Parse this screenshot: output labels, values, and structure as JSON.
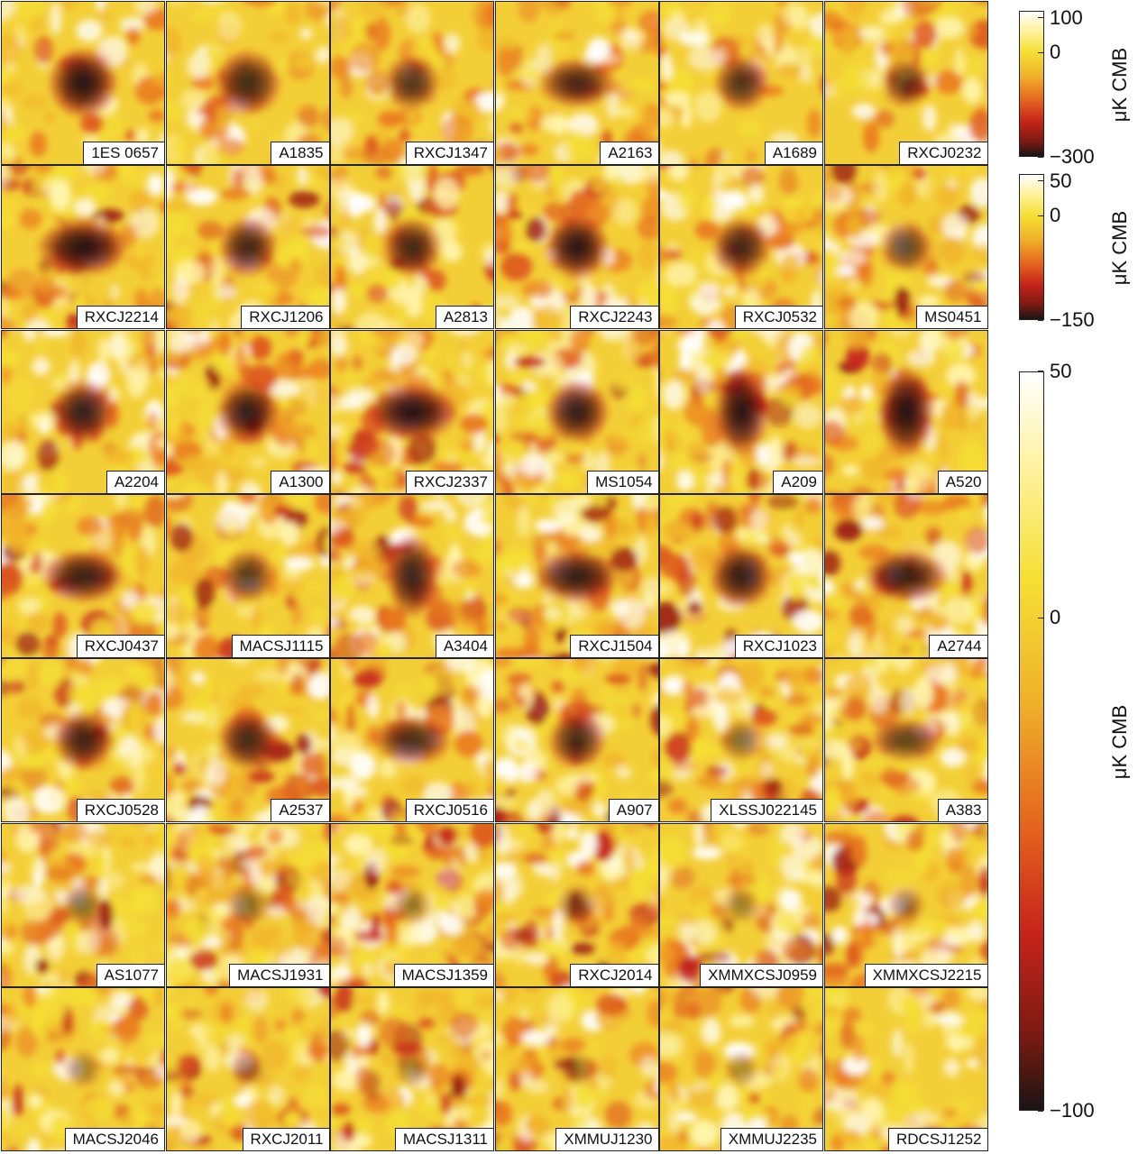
{
  "panels": [
    {
      "name": "1ES 0657",
      "signal": 1.0,
      "shape": "round",
      "noise": 0.25
    },
    {
      "name": "A1835",
      "signal": 0.75,
      "shape": "star",
      "noise": 0.35
    },
    {
      "name": "RXCJ1347",
      "signal": 0.65,
      "shape": "round",
      "noise": 0.35
    },
    {
      "name": "A2163",
      "signal": 0.7,
      "shape": "wide",
      "noise": 0.45
    },
    {
      "name": "A1689",
      "signal": 0.65,
      "shape": "round",
      "noise": 0.35
    },
    {
      "name": "RXCJ0232",
      "signal": 0.5,
      "shape": "round",
      "noise": 0.4
    },
    {
      "name": "RXCJ2214",
      "signal": 0.95,
      "shape": "wide",
      "noise": 0.7
    },
    {
      "name": "RXCJ1206",
      "signal": 0.75,
      "shape": "round",
      "noise": 0.6
    },
    {
      "name": "A2813",
      "signal": 0.75,
      "shape": "round",
      "noise": 0.6
    },
    {
      "name": "RXCJ2243",
      "signal": 0.9,
      "shape": "round",
      "noise": 0.6
    },
    {
      "name": "RXCJ0532",
      "signal": 0.75,
      "shape": "round",
      "noise": 0.55
    },
    {
      "name": "MS0451",
      "signal": 0.55,
      "shape": "round",
      "noise": 0.75
    },
    {
      "name": "A2204",
      "signal": 0.85,
      "shape": "round",
      "noise": 0.6
    },
    {
      "name": "A1300",
      "signal": 0.85,
      "shape": "round",
      "noise": 0.9
    },
    {
      "name": "RXCJ2337",
      "signal": 0.95,
      "shape": "wide",
      "noise": 0.9
    },
    {
      "name": "MS1054",
      "signal": 0.85,
      "shape": "round",
      "noise": 0.85
    },
    {
      "name": "A209",
      "signal": 0.9,
      "shape": "tall",
      "noise": 0.9
    },
    {
      "name": "A520",
      "signal": 0.95,
      "shape": "tall",
      "noise": 0.8
    },
    {
      "name": "RXCJ0437",
      "signal": 0.8,
      "shape": "wide",
      "noise": 0.85
    },
    {
      "name": "MACSJ1115",
      "signal": 0.6,
      "shape": "round",
      "noise": 0.8
    },
    {
      "name": "A3404",
      "signal": 0.8,
      "shape": "tall",
      "noise": 0.9
    },
    {
      "name": "RXCJ1504",
      "signal": 0.85,
      "shape": "wide",
      "noise": 1.0
    },
    {
      "name": "RXCJ1023",
      "signal": 0.85,
      "shape": "round",
      "noise": 0.8
    },
    {
      "name": "A2744",
      "signal": 0.8,
      "shape": "wide",
      "noise": 0.85
    },
    {
      "name": "RXCJ0528",
      "signal": 0.75,
      "shape": "round",
      "noise": 0.8
    },
    {
      "name": "A2537",
      "signal": 0.75,
      "shape": "round",
      "noise": 0.8
    },
    {
      "name": "RXCJ0516",
      "signal": 0.7,
      "shape": "wide",
      "noise": 0.85
    },
    {
      "name": "A907",
      "signal": 0.7,
      "shape": "round",
      "noise": 0.8
    },
    {
      "name": "XLSSJ022145",
      "signal": 0.3,
      "shape": "round",
      "noise": 0.85
    },
    {
      "name": "A383",
      "signal": 0.55,
      "shape": "wide",
      "noise": 0.85
    },
    {
      "name": "AS1077",
      "signal": 0.3,
      "shape": "round",
      "noise": 0.9
    },
    {
      "name": "MACSJ1931",
      "signal": 0.3,
      "shape": "round",
      "noise": 1.6
    },
    {
      "name": "MACSJ1359",
      "signal": 0.2,
      "shape": "round",
      "noise": 1.4
    },
    {
      "name": "RXCJ2014",
      "signal": 0.25,
      "shape": "round",
      "noise": 0.9
    },
    {
      "name": "XMMXCSJ0959",
      "signal": 0.15,
      "shape": "round",
      "noise": 0.8
    },
    {
      "name": "XMMXCSJ2215",
      "signal": 0.15,
      "shape": "round",
      "noise": 0.8
    },
    {
      "name": "MACSJ2046",
      "signal": 0.15,
      "shape": "round",
      "noise": 0.75
    },
    {
      "name": "RXCJ2011",
      "signal": 0.1,
      "shape": "round",
      "noise": 0.7
    },
    {
      "name": "MACSJ1311",
      "signal": 0.1,
      "shape": "round",
      "noise": 0.75
    },
    {
      "name": "XMMUJ1230",
      "signal": 0.1,
      "shape": "round",
      "noise": 0.7
    },
    {
      "name": "XMMUJ2235",
      "signal": 0.1,
      "shape": "round",
      "noise": 0.65
    },
    {
      "name": "RDCSJ1252",
      "signal": 0.05,
      "shape": "round",
      "noise": 0.55
    }
  ],
  "colorbars": [
    {
      "unit": "μK CMB",
      "ticks": [
        "100",
        "0",
        "−300"
      ],
      "tick_values": [
        100,
        0,
        -300
      ],
      "min": -300,
      "max": 120
    },
    {
      "unit": "μK CMB",
      "ticks": [
        "50",
        "0",
        "−150"
      ],
      "tick_values": [
        50,
        0,
        -150
      ],
      "min": -150,
      "max": 60
    },
    {
      "unit": "μK CMB",
      "ticks": [
        "50",
        "0",
        "−100"
      ],
      "tick_values": [
        50,
        0,
        -100
      ],
      "min": -100,
      "max": 50
    }
  ],
  "colors": {
    "black": "#1a1414",
    "dark_red": "#6a1810",
    "red": "#c7241b",
    "orange": "#ea7a1e",
    "yellow": "#f5df34",
    "white": "#ffffff",
    "border": "#222222"
  }
}
